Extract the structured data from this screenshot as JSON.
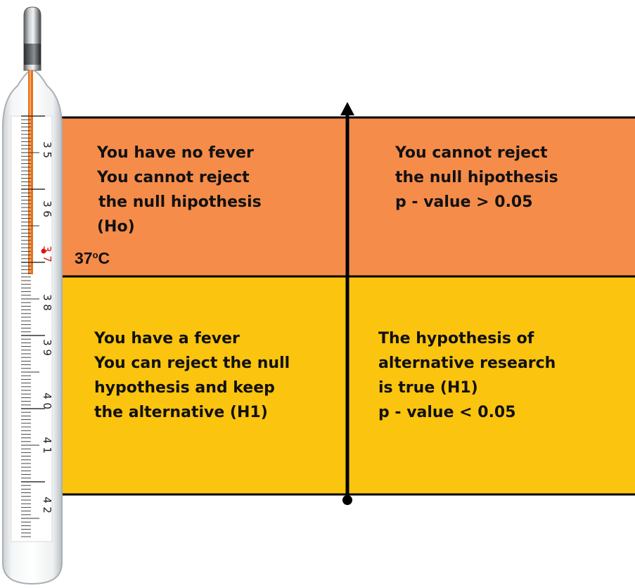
{
  "thermometer": {
    "scale_labels": [
      "3 5",
      "3 6",
      "3 7",
      "3 8",
      "3 9",
      "4 0",
      "4 1",
      "4 2"
    ],
    "marker_label": "37",
    "marker_unit": "o",
    "marker_unit_suffix": "C"
  },
  "quadrants": {
    "top_left": [
      "You have no fever",
      "You cannot reject",
      "the null hipothesis",
      "(Ho)"
    ],
    "top_right": [
      "You cannot reject",
      "the null hipothesis",
      "p - value > 0.05"
    ],
    "bottom_left": [
      "You have a fever",
      "You can reject the null",
      "hypothesis and keep",
      "the alternative (H1)"
    ],
    "bottom_right": [
      "The hypothesis of",
      "alternative research",
      "is true (H1)",
      "p - value <  0.05"
    ]
  },
  "colors": {
    "no_fever_region": "#f58c4a",
    "fever_region": "#fbc40e",
    "mercury": "#e8721c",
    "outline": "#000000"
  }
}
